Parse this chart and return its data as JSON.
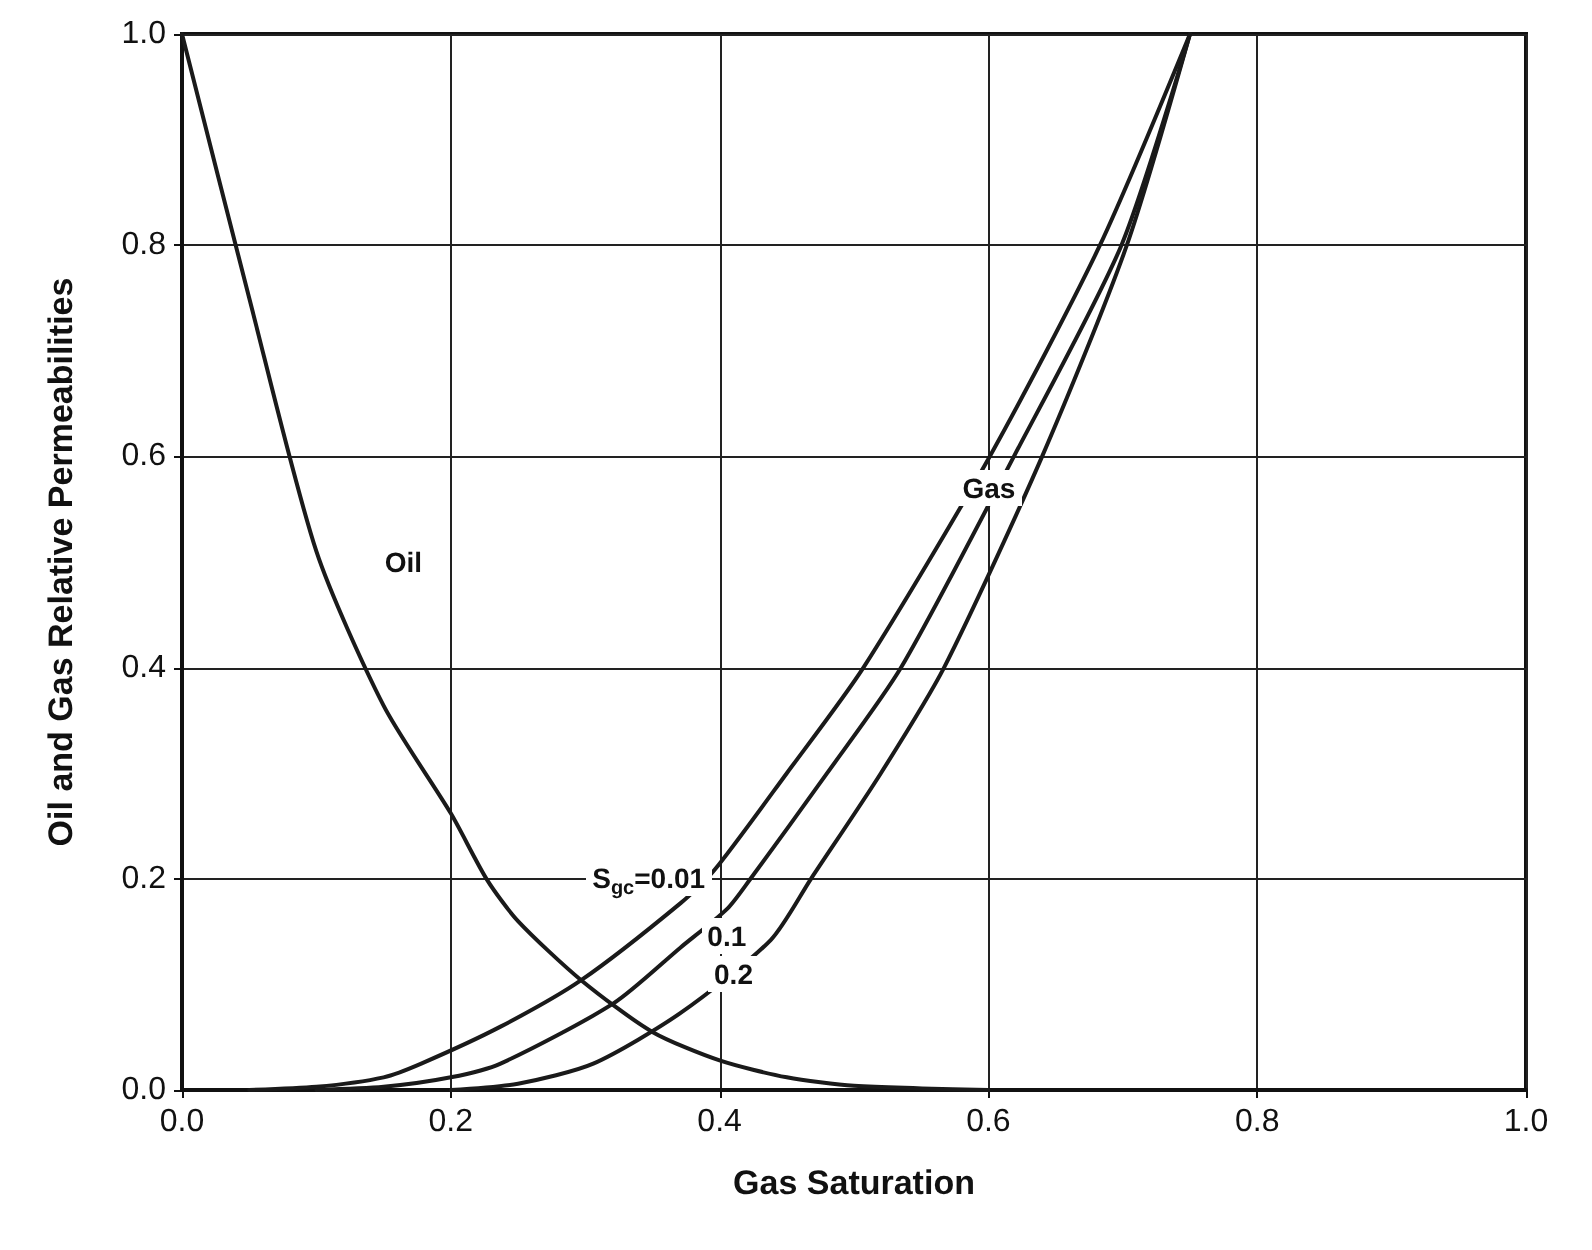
{
  "chart_data": {
    "type": "line",
    "xlabel": "Gas Saturation",
    "ylabel": "Oil and Gas Relative Permeabilities",
    "xlim": [
      0,
      1
    ],
    "ylim": [
      0,
      1
    ],
    "xticks": [
      {
        "value": 0,
        "label": "0.0"
      },
      0.2,
      0.4,
      0.6,
      0.8,
      {
        "value": 1,
        "label": "1.0"
      }
    ],
    "yticks": [
      {
        "value": 0,
        "label": "0.0"
      },
      0.2,
      0.4,
      0.6,
      0.8,
      {
        "value": 1,
        "label": "1.0"
      }
    ],
    "grid": true,
    "marker": "none",
    "line_style": "solid",
    "series": [
      {
        "color": "#1a1a1a",
        "x": [
          0,
          0.05,
          0.1,
          0.15,
          0.2,
          0.227,
          0.25,
          0.297,
          0.35,
          0.4,
          0.45,
          0.5,
          0.6
        ],
        "values": [
          1.0,
          0.75,
          0.51,
          0.364,
          0.262,
          0.199,
          0.16,
          0.104,
          0.055,
          0.028,
          0.012,
          0.004,
          0
        ]
      },
      {
        "color": "#1a1a1a",
        "x": [
          0.05,
          0.1,
          0.15,
          0.178,
          0.237,
          0.297,
          0.371,
          0.396,
          0.45,
          0.507,
          0.601,
          0.683,
          0.75
        ],
        "values": [
          0,
          0.003,
          0.012,
          0.025,
          0.06,
          0.104,
          0.177,
          0.208,
          0.3,
          0.4,
          0.6,
          0.8,
          1.0
        ]
      },
      {
        "color": "#1a1a1a",
        "x": [
          0.1,
          0.15,
          0.2,
          0.237,
          0.321,
          0.371,
          0.406,
          0.423,
          0.48,
          0.535,
          0.619,
          0.699,
          0.75
        ],
        "values": [
          0,
          0.003,
          0.012,
          0.025,
          0.082,
          0.135,
          0.172,
          0.2,
          0.3,
          0.4,
          0.6,
          0.8,
          1.0
        ]
      },
      {
        "color": "#1a1a1a",
        "x": [
          0.2,
          0.25,
          0.306,
          0.371,
          0.438,
          0.468,
          0.52,
          0.567,
          0.64,
          0.703,
          0.75
        ],
        "values": [
          0,
          0.006,
          0.025,
          0.073,
          0.142,
          0.2,
          0.3,
          0.4,
          0.6,
          0.8,
          1.0
        ]
      }
    ],
    "annotations": [
      {
        "text": "Oil",
        "x": 0.165,
        "y": 0.5
      },
      {
        "text": "Gas",
        "x": 0.6,
        "y": 0.57
      },
      {
        "text": "S$_{gc}$=0.01",
        "x": 0.396,
        "y": 0.208
      },
      {
        "text": "0.1",
        "x": 0.405,
        "y": 0.146
      },
      {
        "text": "0.2",
        "x": 0.41,
        "y": 0.11
      }
    ]
  }
}
